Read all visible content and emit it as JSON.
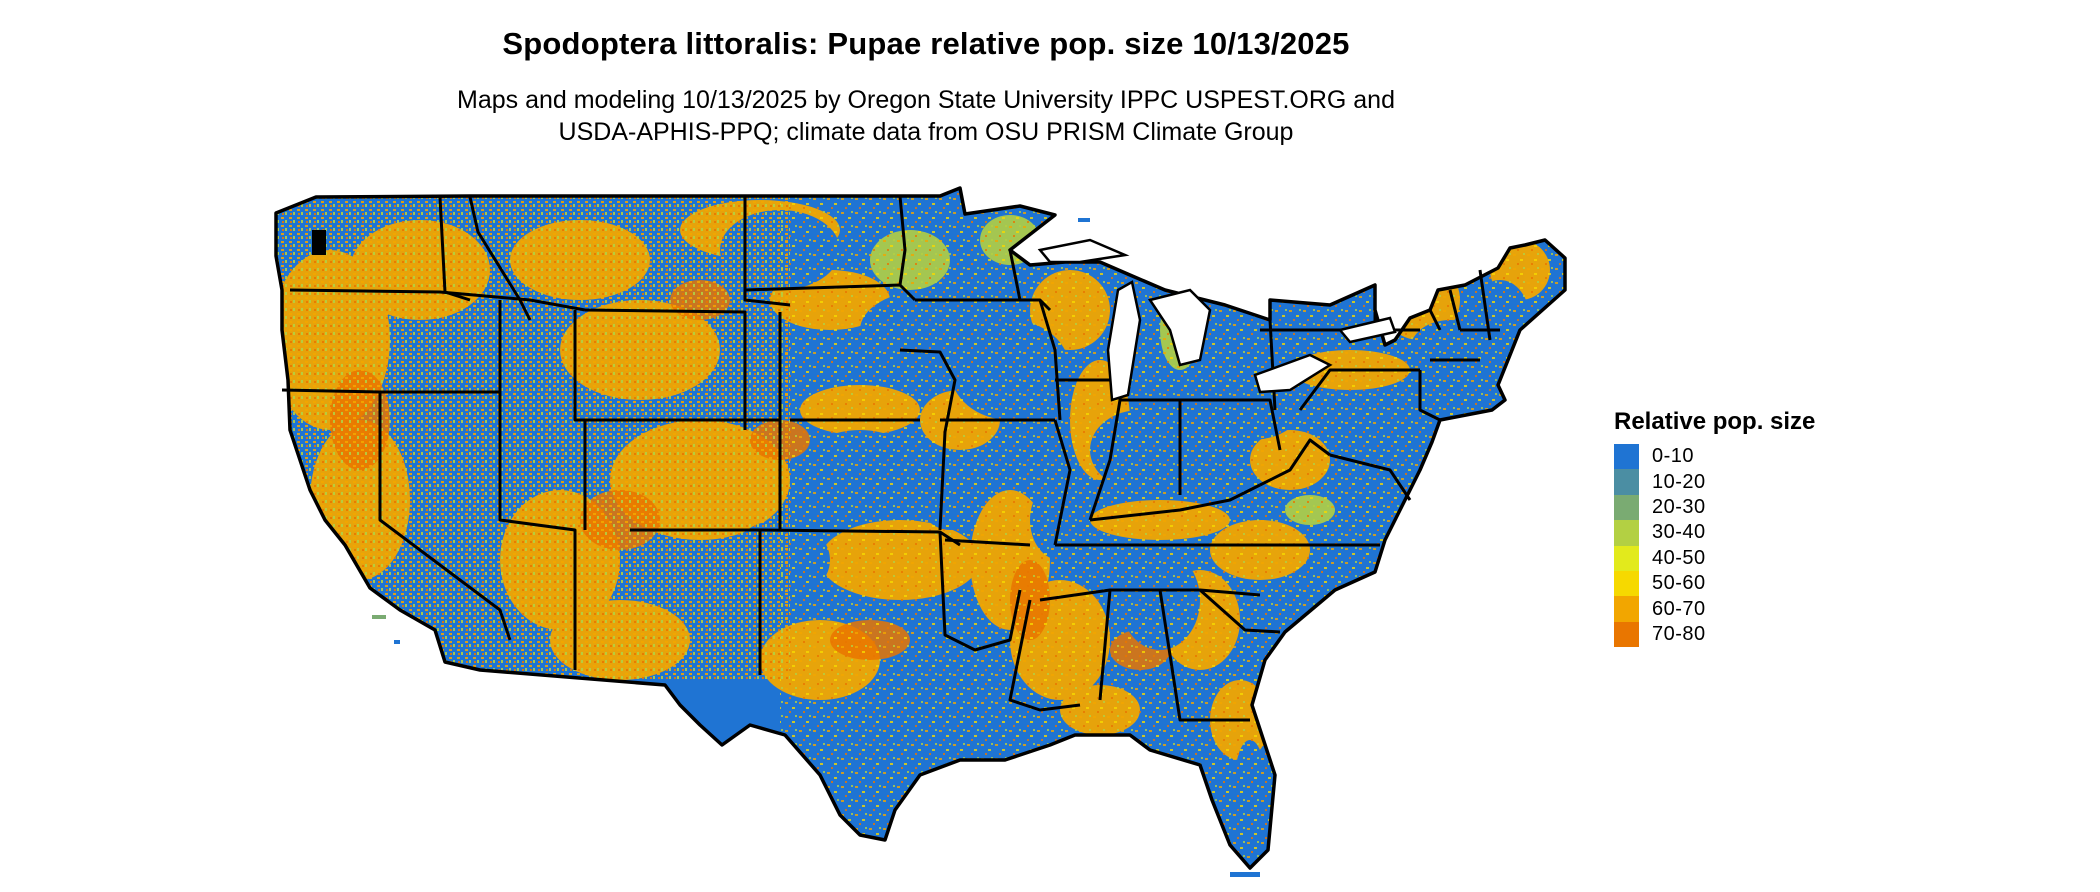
{
  "title": "Spodoptera littoralis: Pupae relative pop. size 10/13/2025",
  "subtitle": [
    "Maps and modeling 10/13/2025 by Oregon State University IPPC USPEST.ORG and",
    "USDA-APHIS-PPQ; climate data from OSU PRISM Climate Group"
  ],
  "legend": {
    "title": "Relative pop. size",
    "items": [
      {
        "label": "0-10",
        "color": "#1f74d3"
      },
      {
        "label": "10-20",
        "color": "#4b8ea3"
      },
      {
        "label": "20-30",
        "color": "#7aab72"
      },
      {
        "label": "30-40",
        "color": "#b3d043"
      },
      {
        "label": "40-50",
        "color": "#e2ea1c"
      },
      {
        "label": "50-60",
        "color": "#f6d900"
      },
      {
        "label": "60-70",
        "color": "#f2a600"
      },
      {
        "label": "70-80",
        "color": "#e97600"
      }
    ]
  },
  "map": {
    "region": "contiguous-united-states",
    "land_color": "#1f74d3",
    "border_color": "#000000"
  }
}
